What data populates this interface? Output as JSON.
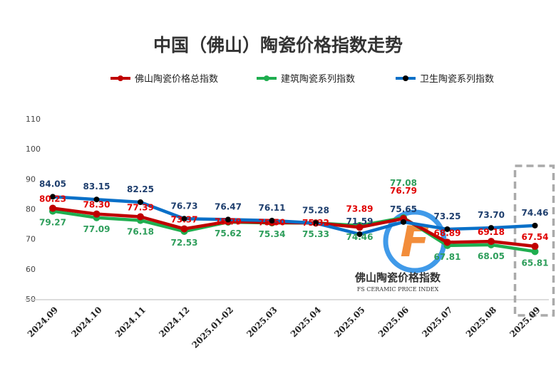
{
  "chart_data": {
    "type": "line",
    "title": "中国（佛山）陶瓷价格指数走势",
    "categories": [
      "2024.09",
      "2024.10",
      "2024.11",
      "2024.12",
      "2025.01-02",
      "2025.03",
      "2025.04",
      "2025.05",
      "2025.06",
      "2025.07",
      "2025.08",
      "2025.09"
    ],
    "ylim": [
      50,
      110
    ],
    "yticks": [
      50,
      60,
      70,
      80,
      90,
      100,
      110
    ],
    "legend_position": "top",
    "series": [
      {
        "name": "佛山陶瓷价格总指数",
        "color": "#e00000",
        "line_color": "#c00000",
        "values": [
          80.23,
          78.3,
          77.39,
          73.37,
          75.79,
          75.5,
          75.32,
          73.89,
          76.79,
          68.89,
          69.18,
          67.54
        ]
      },
      {
        "name": "建筑陶瓷系列指数",
        "color": "#2e9e5b",
        "line_color": "#1fae4f",
        "values": [
          79.27,
          77.09,
          76.18,
          72.53,
          75.62,
          75.34,
          75.33,
          74.46,
          77.08,
          67.81,
          68.05,
          65.81
        ]
      },
      {
        "name": "卫生陶瓷系列指数",
        "color": "#1f3f6e",
        "line_color": "#0a70c8",
        "values": [
          84.05,
          83.15,
          82.25,
          76.73,
          76.47,
          76.11,
          75.28,
          71.59,
          75.65,
          73.25,
          73.7,
          74.46
        ]
      }
    ],
    "highlight_category": "2025.09"
  },
  "watermark": {
    "cn": "佛山陶瓷价格指数",
    "en": "FS CERAMIC PRICE INDEX",
    "letter": "F"
  }
}
